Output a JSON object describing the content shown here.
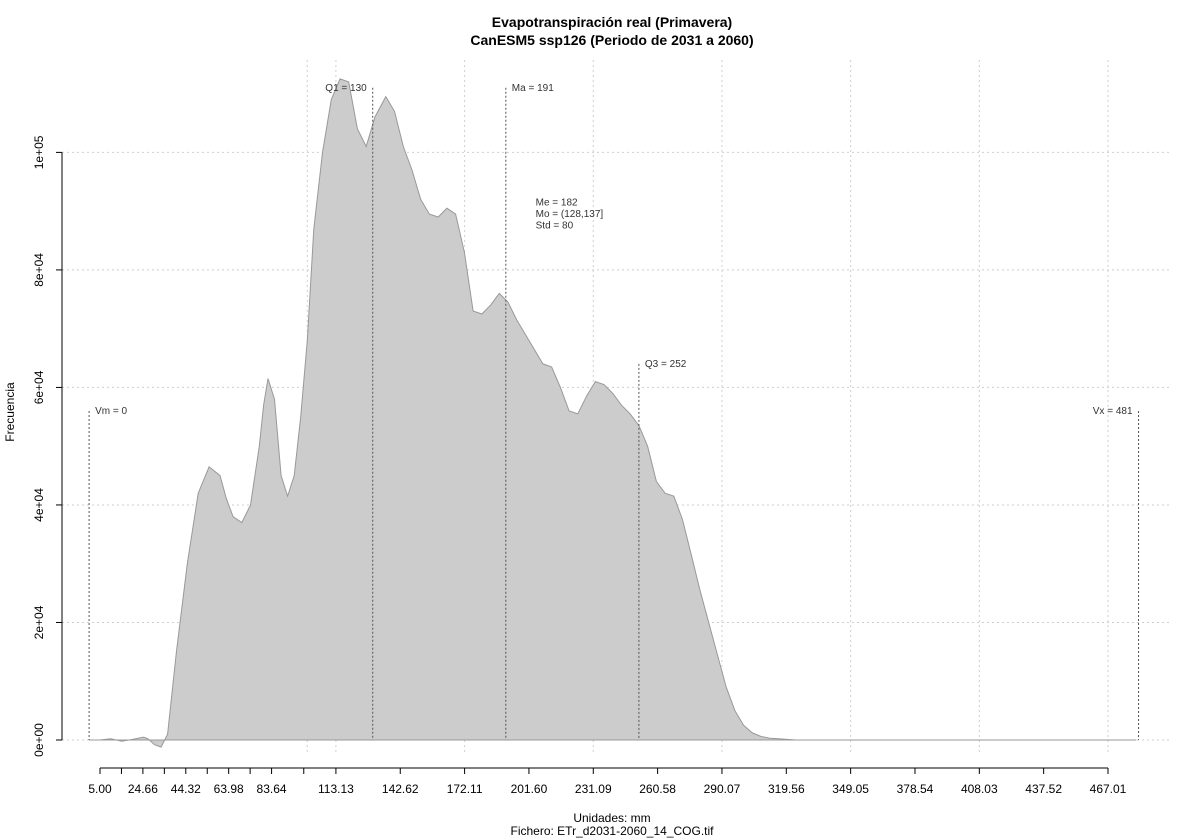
{
  "chart_data": {
    "type": "area",
    "title": "Evapotranspiración real (Primavera)",
    "subtitle": "CanESM5 ssp126 (Periodo de 2031 a 2060)",
    "xlabel": "Unidades: mm",
    "ylabel": "Frecuencia",
    "footer": "Fichero: ETr_d2031-2060_14_COG.tif",
    "xlim": [
      0,
      500
    ],
    "ylim": [
      0,
      113000
    ],
    "x_tick_values": [
      5.0,
      24.66,
      44.32,
      63.98,
      83.64,
      113.13,
      142.62,
      172.11,
      201.6,
      231.09,
      260.58,
      290.07,
      319.56,
      349.05,
      378.54,
      408.03,
      437.52,
      467.01
    ],
    "x_tick_labels": [
      "5.00",
      "24.66",
      "44.32",
      "63.98",
      "83.64",
      "113.13",
      "142.62",
      "172.11",
      "201.60",
      "231.09",
      "260.58",
      "290.07",
      "319.56",
      "349.05",
      "378.54",
      "408.03",
      "437.52",
      "467.01"
    ],
    "x_minor_ticks": [
      14.83,
      34.49,
      54.15,
      73.81,
      98.39
    ],
    "y_tick_values": [
      0,
      20000,
      40000,
      60000,
      80000,
      100000
    ],
    "y_tick_labels": [
      "0e+00",
      "2e+04",
      "4e+04",
      "6e+04",
      "8e+04",
      "1e+05"
    ],
    "grid": true,
    "fill_color": "#cccccc",
    "line_color": "#999999",
    "series": [
      {
        "x": [
          0,
          5,
          10,
          15,
          20,
          25,
          27,
          30,
          33,
          36,
          40,
          45,
          50,
          55,
          60,
          63,
          66,
          70,
          74,
          78,
          80,
          82,
          85,
          88,
          91,
          94,
          97,
          100,
          103,
          107,
          111,
          115,
          119,
          123,
          127,
          131,
          136,
          140,
          144,
          148,
          152,
          156,
          160,
          164,
          168,
          172,
          176,
          180,
          184,
          188,
          192,
          196,
          200,
          204,
          208,
          212,
          216,
          220,
          224,
          228,
          232,
          236,
          240,
          244,
          248,
          252,
          256,
          260,
          264,
          268,
          272,
          276,
          280,
          284,
          288,
          292,
          296,
          300,
          304,
          308,
          312,
          316,
          320,
          324,
          328,
          332,
          336,
          340,
          344,
          348,
          352,
          356,
          360,
          364,
          368,
          372,
          376,
          380,
          384,
          388,
          392,
          396,
          400,
          405,
          410,
          420,
          440,
          460,
          470,
          480
        ],
        "y": [
          0,
          0,
          200,
          -200,
          100,
          500,
          200,
          -800,
          -1200,
          1000,
          15000,
          30000,
          42000,
          46500,
          45000,
          41000,
          38000,
          37000,
          40000,
          50000,
          57000,
          61500,
          58000,
          45000,
          41500,
          45000,
          55000,
          68000,
          87000,
          100000,
          109000,
          112500,
          112000,
          104000,
          101000,
          106000,
          109500,
          107000,
          101000,
          97000,
          92000,
          89500,
          89000,
          90500,
          89500,
          83000,
          73000,
          72500,
          74000,
          76000,
          74500,
          71500,
          69000,
          66500,
          64000,
          63500,
          60000,
          56000,
          55500,
          58500,
          61000,
          60500,
          59000,
          57000,
          55500,
          53500,
          50000,
          44000,
          42000,
          41500,
          37500,
          31500,
          25500,
          20000,
          14500,
          9000,
          5000,
          2500,
          1200,
          600,
          300,
          200,
          100,
          0,
          0,
          0,
          0,
          0,
          0,
          0,
          0,
          0,
          0,
          0,
          0,
          0,
          0,
          0,
          0,
          0,
          0,
          0,
          0,
          0,
          0,
          0,
          0,
          0,
          0,
          0
        ]
      }
    ],
    "reference_lines": [
      {
        "x": 0,
        "label": "Vm = 0",
        "label_y": 56000,
        "side": "right"
      },
      {
        "x": 130,
        "label": "Q1 = 130",
        "label_y": 111000,
        "side": "left"
      },
      {
        "x": 191,
        "label": "Ma = 191",
        "label_y": 111000,
        "side": "right"
      },
      {
        "x": 252,
        "label": "Q3 = 252",
        "label_y": 64000,
        "side": "right"
      },
      {
        "x": 481,
        "label": "Vx = 481",
        "label_y": 56000,
        "side": "left"
      }
    ],
    "stats_text": [
      "Me = 182",
      "Mo = (128,137]",
      "Std = 80"
    ],
    "stats_anchor": {
      "x": 201,
      "y": 91000
    }
  }
}
